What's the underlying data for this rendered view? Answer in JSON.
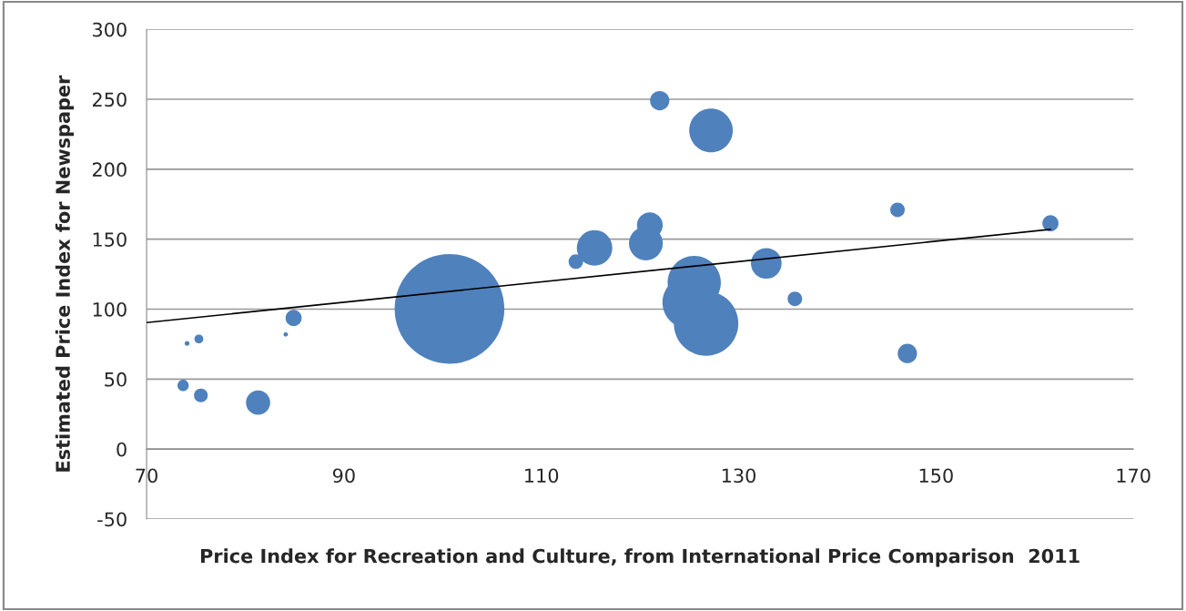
{
  "chart_data": {
    "type": "bubble",
    "xlabel": "Price Index for Recreation and Culture, from International Price Comparison  2011",
    "ylabel": "Estimated Price Index for Newspaper",
    "xlim": [
      70,
      170
    ],
    "xticks": [
      70,
      90,
      110,
      130,
      150,
      170
    ],
    "ylim": [
      -50,
      300
    ],
    "yticks": [
      -50,
      0,
      50,
      100,
      150,
      200,
      250,
      300
    ],
    "grid": "y",
    "series": [
      {
        "color": "#4f81bd",
        "x": [
          73.7,
          74.1,
          75.3,
          75.5,
          81.3,
          84.1,
          84.9,
          100.7,
          113.5,
          115.4,
          120.6,
          121.0,
          122.0,
          127.2,
          125.5,
          124.9,
          126.7,
          132.8,
          135.7,
          146.1,
          147.1,
          161.6
        ],
        "values": [
          45.5,
          75.5,
          78.7,
          38.4,
          33.2,
          82,
          93.7,
          100.2,
          134,
          143.8,
          147,
          160,
          249,
          227.7,
          119,
          104.8,
          89.8,
          132.7,
          107.4,
          171,
          68.3,
          161.4
        ],
        "sizes": [
          0.0106,
          0.0019,
          0.0065,
          0.0156,
          0.0487,
          0.0016,
          0.0216,
          1,
          0.0175,
          0.1047,
          0.0954,
          0.0554,
          0.0311,
          0.1577,
          0.2355,
          0.2215,
          0.346,
          0.0781,
          0.0175,
          0.0175,
          0.0311,
          0.0216
        ]
      },
      {
        "type": "line",
        "color": "#000000",
        "x": [
          70,
          161.6
        ],
        "values": [
          90.4,
          157
        ]
      }
    ]
  }
}
